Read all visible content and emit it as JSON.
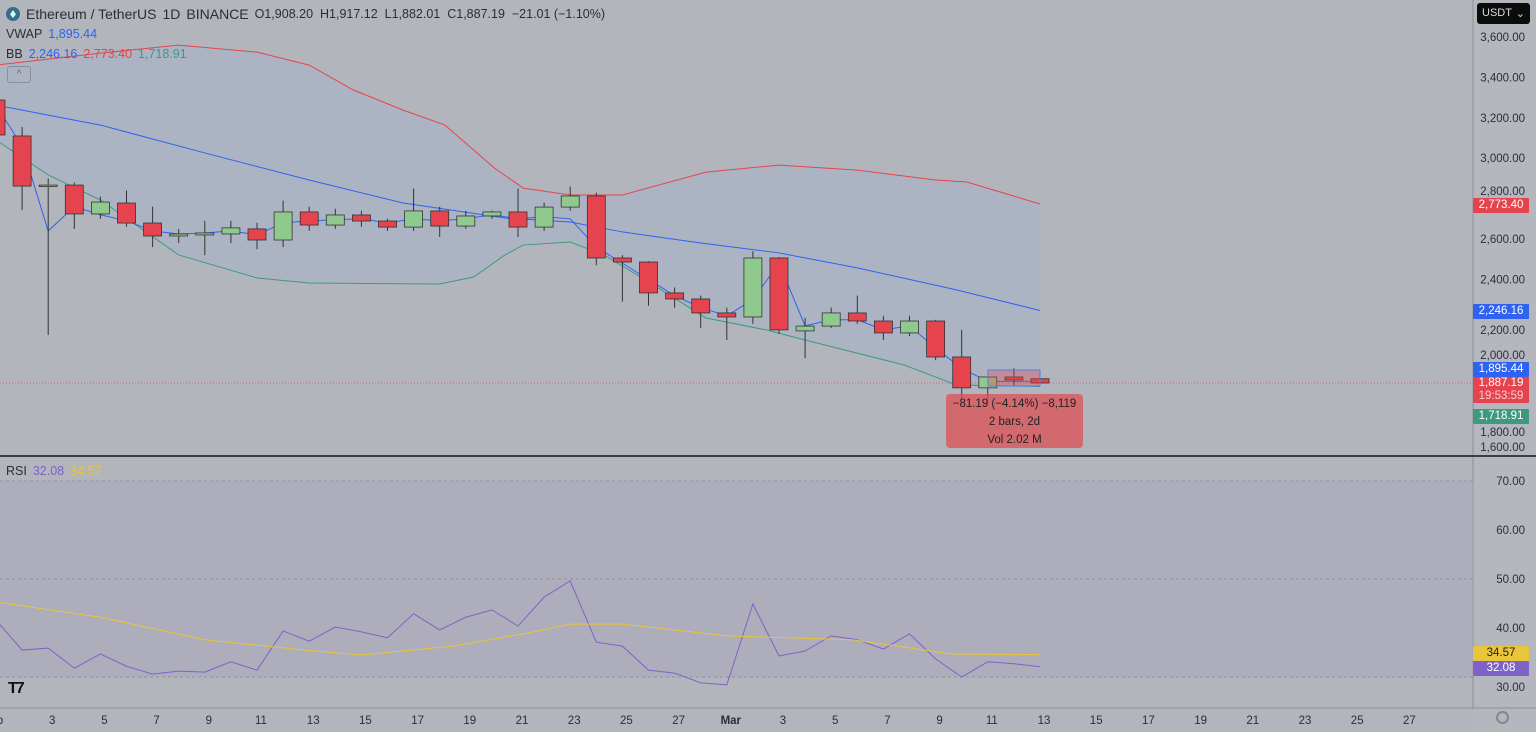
{
  "header": {
    "symbol": "Ethereum / TetherUS",
    "interval": "1D",
    "exchange": "BINANCE",
    "open_label": "O",
    "open": "1,908.20",
    "high_label": "H",
    "high": "1,917.12",
    "low_label": "L",
    "low": "1,882.01",
    "close_label": "C",
    "close": "1,887.19",
    "change": "−21.01 (−1.10%)"
  },
  "vwap": {
    "label": "VWAP",
    "value": "1,895.44"
  },
  "bb": {
    "label": "BB",
    "basis": "2,246.16",
    "upper": "2,773.40",
    "lower": "1,718.91"
  },
  "rsi": {
    "label": "RSI",
    "value": "32.08",
    "ma": "34.57"
  },
  "currency": "USDT",
  "collapse_icon": "^",
  "measure": {
    "line1": "−81.19 (−4.14%) −8,119",
    "line2": "2 bars, 2d",
    "line3": "Vol 2.02 M"
  },
  "badges": {
    "upper": "2,773.40",
    "basis": "2,246.16",
    "vwap": "1,895.44",
    "price": "1,887.19",
    "countdown": "19:53:59",
    "lower": "1,718.91",
    "rsi_ma": "34.57",
    "rsi": "32.08"
  },
  "logo": "TV",
  "colors": {
    "up": "#8fc98e",
    "down": "#e5444e",
    "upper": "#e5444e",
    "basis": "#2f62f0",
    "lower": "#3e9a7e",
    "rsi": "#7e62c8",
    "rsi_ma": "#e8c53a"
  },
  "chart_data": {
    "type": "candlestick",
    "price_ticks": [
      3600,
      3400,
      3200,
      3000,
      2800,
      2600,
      2400,
      2200,
      2000,
      1800,
      1600
    ],
    "price_tick_labels": [
      "3,600.00",
      "3,400.00",
      "3,200.00",
      "3,000.00",
      "2,800.00",
      "2,600.00",
      "2,400.00",
      "2,200.00",
      "2,000.00",
      "1,800.00",
      "1,600.00"
    ],
    "ylim": [
      1550,
      3700
    ],
    "rsi_ticks": [
      "70.00",
      "60.00",
      "50.00",
      "40.00",
      "30.00"
    ],
    "rsi_tick_values": [
      70,
      60,
      50,
      40,
      30
    ],
    "time_labels": [
      [
        "b",
        0
      ],
      [
        "3",
        2
      ],
      [
        "5",
        4
      ],
      [
        "7",
        6
      ],
      [
        "9",
        8
      ],
      [
        "11",
        10
      ],
      [
        "13",
        12
      ],
      [
        "15",
        14
      ],
      [
        "17",
        16
      ],
      [
        "19",
        18
      ],
      [
        "21",
        20
      ],
      [
        "23",
        22
      ],
      [
        "25",
        24
      ],
      [
        "27",
        26
      ],
      [
        "Mar",
        28
      ],
      [
        "3",
        30
      ],
      [
        "5",
        32
      ],
      [
        "7",
        34
      ],
      [
        "9",
        36
      ],
      [
        "11",
        38
      ],
      [
        "13",
        40
      ],
      [
        "15",
        42
      ],
      [
        "17",
        44
      ],
      [
        "19",
        46
      ],
      [
        "21",
        48
      ],
      [
        "23",
        50
      ],
      [
        "25",
        52
      ],
      [
        "27",
        54
      ]
    ],
    "ohlc": [
      [
        3288,
        3320,
        3090,
        3115
      ],
      [
        3110,
        3154,
        2744,
        2862
      ],
      [
        2862,
        2900,
        2125,
        2867
      ],
      [
        2867,
        2880,
        2650,
        2724
      ],
      [
        2724,
        2810,
        2700,
        2783
      ],
      [
        2778,
        2840,
        2660,
        2679
      ],
      [
        2679,
        2760,
        2560,
        2615
      ],
      [
        2615,
        2650,
        2580,
        2625
      ],
      [
        2620,
        2690,
        2520,
        2630
      ],
      [
        2625,
        2690,
        2580,
        2655
      ],
      [
        2650,
        2680,
        2550,
        2595
      ],
      [
        2595,
        2790,
        2560,
        2734
      ],
      [
        2734,
        2760,
        2640,
        2669
      ],
      [
        2669,
        2750,
        2650,
        2719
      ],
      [
        2719,
        2740,
        2660,
        2689
      ],
      [
        2689,
        2700,
        2640,
        2659
      ],
      [
        2659,
        2850,
        2640,
        2739
      ],
      [
        2739,
        2760,
        2610,
        2664
      ],
      [
        2664,
        2740,
        2650,
        2714
      ],
      [
        2714,
        2740,
        2700,
        2734
      ],
      [
        2734,
        2850,
        2610,
        2659
      ],
      [
        2659,
        2780,
        2640,
        2758
      ],
      [
        2758,
        2860,
        2740,
        2813
      ],
      [
        2813,
        2830,
        2470,
        2506
      ],
      [
        2506,
        2520,
        2290,
        2486
      ],
      [
        2486,
        2490,
        2270,
        2333
      ],
      [
        2333,
        2360,
        2260,
        2303
      ],
      [
        2303,
        2320,
        2160,
        2234
      ],
      [
        2234,
        2260,
        2100,
        2214
      ],
      [
        2214,
        2540,
        2180,
        2506
      ],
      [
        2506,
        2510,
        2130,
        2150
      ],
      [
        2145,
        2210,
        2010,
        2169
      ],
      [
        2169,
        2260,
        2160,
        2234
      ],
      [
        2234,
        2320,
        2180,
        2194
      ],
      [
        2194,
        2220,
        2100,
        2135
      ],
      [
        2135,
        2220,
        2120,
        2194
      ],
      [
        2194,
        2200,
        2000,
        2016
      ],
      [
        2016,
        2150,
        1800,
        1863
      ],
      [
        1863,
        1920,
        1800,
        1917
      ],
      [
        1917,
        1960,
        1870,
        1902
      ],
      [
        1908.2,
        1917.12,
        1882.01,
        1887.19
      ]
    ],
    "bb_upper": [
      [
        0,
        3461
      ],
      [
        4,
        3520
      ],
      [
        7,
        3560
      ],
      [
        10,
        3525
      ],
      [
        12,
        3461
      ],
      [
        13.7,
        3337
      ],
      [
        15.6,
        3238
      ],
      [
        17.2,
        3164
      ],
      [
        19.1,
        2951
      ],
      [
        20.2,
        2852
      ],
      [
        22,
        2818
      ],
      [
        24,
        2818
      ],
      [
        27.2,
        2931
      ],
      [
        30,
        2966
      ],
      [
        33,
        2941
      ],
      [
        36,
        2892
      ],
      [
        37.2,
        2882
      ],
      [
        40,
        2773.4
      ]
    ],
    "bb_basis": [
      [
        0,
        3263
      ],
      [
        4,
        3164
      ],
      [
        8,
        3026
      ],
      [
        12,
        2892
      ],
      [
        15.6,
        2778
      ],
      [
        19.5,
        2704
      ],
      [
        22,
        2684
      ],
      [
        24,
        2635
      ],
      [
        27,
        2580
      ],
      [
        30,
        2531
      ],
      [
        33,
        2457
      ],
      [
        36.8,
        2348
      ],
      [
        40,
        2246.16
      ]
    ],
    "bb_lower": [
      [
        0,
        3090
      ],
      [
        2,
        2917
      ],
      [
        4,
        2793
      ],
      [
        7,
        2521
      ],
      [
        10,
        2407
      ],
      [
        12,
        2382
      ],
      [
        17,
        2377
      ],
      [
        18.3,
        2412
      ],
      [
        19.5,
        2521
      ],
      [
        20.2,
        2570
      ],
      [
        22,
        2585
      ],
      [
        23.3,
        2521
      ],
      [
        25.2,
        2372
      ],
      [
        27.2,
        2209
      ],
      [
        29.5,
        2150
      ],
      [
        31,
        2100
      ],
      [
        34.8,
        1976
      ],
      [
        36.8,
        1877
      ],
      [
        40,
        1870
      ]
    ],
    "vwap": [
      [
        0,
        3263
      ],
      [
        1,
        3060
      ],
      [
        2,
        2640
      ],
      [
        3,
        2760
      ],
      [
        4,
        2720
      ],
      [
        5,
        2690
      ],
      [
        6,
        2640
      ],
      [
        7,
        2625
      ],
      [
        8,
        2630
      ],
      [
        9,
        2640
      ],
      [
        10,
        2620
      ],
      [
        11,
        2680
      ],
      [
        12,
        2690
      ],
      [
        13,
        2695
      ],
      [
        14,
        2700
      ],
      [
        15,
        2680
      ],
      [
        16,
        2700
      ],
      [
        17,
        2690
      ],
      [
        18,
        2700
      ],
      [
        19,
        2720
      ],
      [
        20,
        2700
      ],
      [
        21,
        2710
      ],
      [
        22,
        2700
      ],
      [
        23,
        2560
      ],
      [
        24,
        2480
      ],
      [
        25,
        2400
      ],
      [
        26,
        2320
      ],
      [
        27,
        2260
      ],
      [
        28,
        2220
      ],
      [
        29,
        2300
      ],
      [
        30,
        2480
      ],
      [
        31,
        2170
      ],
      [
        32,
        2200
      ],
      [
        33,
        2200
      ],
      [
        34,
        2150
      ],
      [
        35,
        2170
      ],
      [
        36,
        2060
      ],
      [
        37,
        1960
      ],
      [
        38,
        1895
      ],
      [
        39,
        1895
      ],
      [
        40,
        1895.44
      ]
    ],
    "rsi_values": [
      41.6,
      35.5,
      35.9,
      31.8,
      34.7,
      32.2,
      30.6,
      31.2,
      31.0,
      33.1,
      31.4,
      39.4,
      37.3,
      40.2,
      39.2,
      38.0,
      42.9,
      39.6,
      42.2,
      43.7,
      40.4,
      46.3,
      49.6,
      37.1,
      36.3,
      31.4,
      30.8,
      28.8,
      28.4,
      44.9,
      34.3,
      35.3,
      38.4,
      37.6,
      35.7,
      38.8,
      33.7,
      30.0,
      33.1,
      32.7,
      32.08
    ],
    "rsi_ma": [
      [
        0,
        45.3
      ],
      [
        4,
        42.2
      ],
      [
        8,
        37.6
      ],
      [
        11.8,
        35.5
      ],
      [
        14,
        34.5
      ],
      [
        17.5,
        36.3
      ],
      [
        20.2,
        38.8
      ],
      [
        22,
        40.8
      ],
      [
        24,
        40.8
      ],
      [
        28,
        38.4
      ],
      [
        32.8,
        37.6
      ],
      [
        36.6,
        34.7
      ],
      [
        40,
        34.57
      ]
    ],
    "current_price": 1887.19
  }
}
